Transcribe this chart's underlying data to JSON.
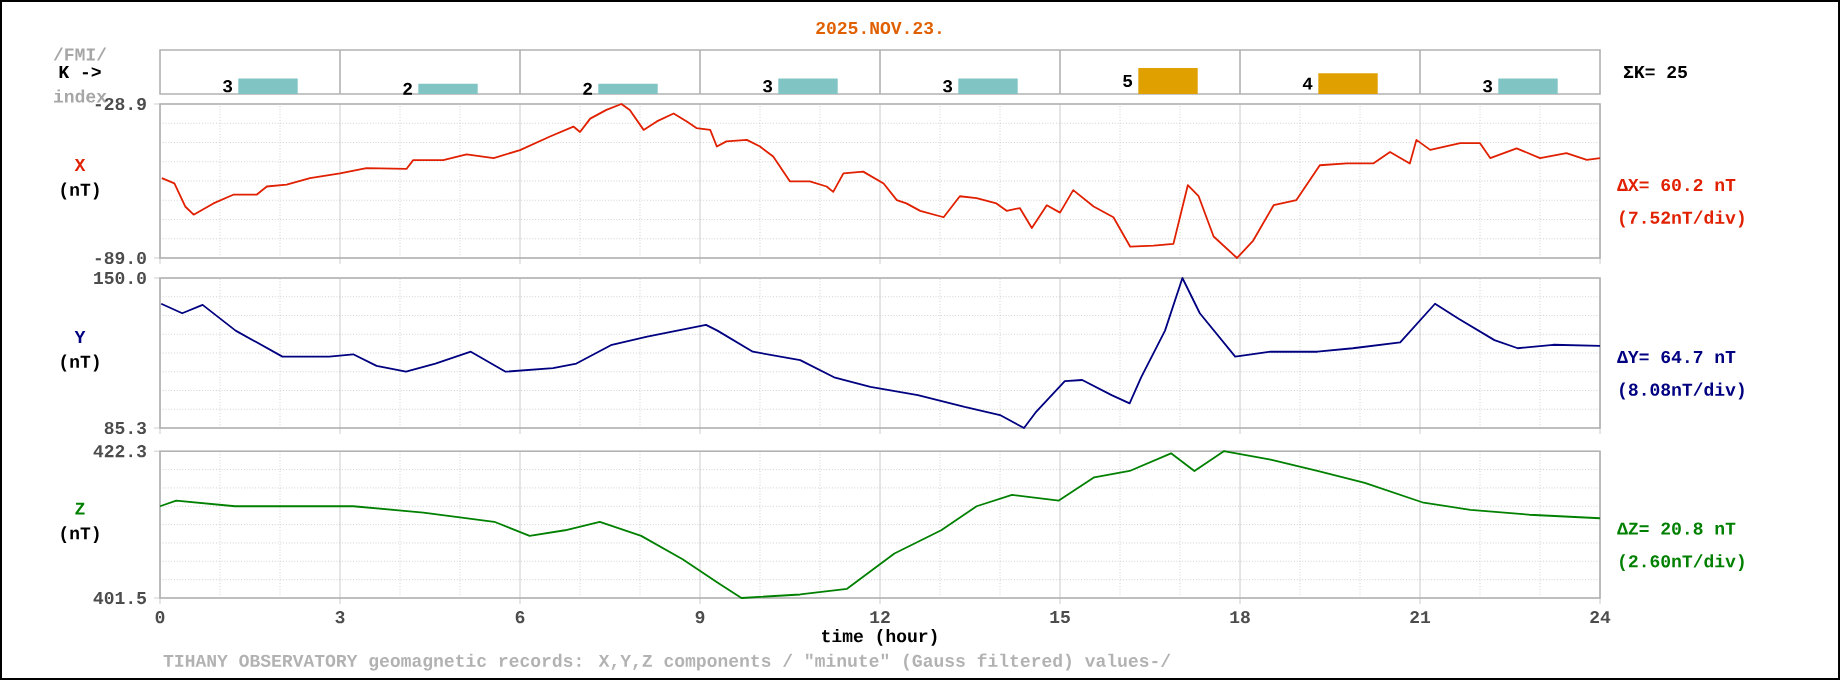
{
  "chart_data": [
    {
      "type": "bar",
      "title": "2025.NOV.23.",
      "ylabel": "K ->",
      "annotations": [
        "/FMI/",
        "index",
        "ΣK= 25"
      ],
      "categories": [
        null,
        null,
        null,
        null,
        null,
        null,
        null,
        null
      ],
      "values": [
        3,
        2,
        2,
        3,
        3,
        5,
        4,
        3
      ],
      "colors": [
        "#80c4c4",
        "#80c4c4",
        "#80c4c4",
        "#80c4c4",
        "#80c4c4",
        "#e0a000",
        "#e0a000",
        "#80c4c4"
      ],
      "data_labels": true
    },
    {
      "type": "line",
      "ylabel": "(nT)",
      "annotations": [
        "ΔX= 60.2 nT",
        "(7.52nT/div)"
      ],
      "xlim": [
        0,
        24
      ],
      "xticks": [
        0,
        3,
        6,
        9,
        12,
        15,
        18,
        21,
        24
      ],
      "ylim": [
        -89.0,
        -28.9
      ],
      "yticks": [
        -28.9,
        {
          "value": -89.0,
          "label": "-89.0"
        }
      ],
      "tick_labels": "y",
      "grid": true,
      "series": [
        {
          "name": "X",
          "color": "#e02000",
          "x": [
            0.03,
            0.24,
            0.42,
            0.56,
            0.89,
            1.22,
            1.61,
            1.78,
            2.11,
            2.5,
            3.0,
            3.44,
            4.11,
            4.22,
            4.72,
            5.11,
            5.56,
            6.0,
            6.5,
            6.89,
            7.0,
            7.17,
            7.44,
            7.69,
            7.83,
            8.06,
            8.28,
            8.56,
            8.78,
            8.94,
            9.17,
            9.28,
            9.44,
            9.78,
            10.0,
            10.22,
            10.5,
            10.83,
            11.11,
            11.22,
            11.39,
            11.72,
            12.06,
            12.28,
            12.44,
            12.67,
            13.06,
            13.33,
            13.61,
            13.94,
            14.11,
            14.33,
            14.53,
            14.78,
            15.0,
            15.22,
            15.56,
            15.89,
            16.17,
            16.56,
            16.89,
            17.13,
            17.31,
            17.56,
            17.95,
            18.22,
            18.56,
            18.94,
            19.33,
            19.78,
            20.22,
            20.5,
            20.83,
            20.94,
            21.17,
            21.67,
            22.0,
            22.17,
            22.61,
            23.0,
            23.44,
            23.78,
            24.0
          ],
          "values": [
            -57.8,
            -59.9,
            -68.9,
            -72.1,
            -67.7,
            -64.3,
            -64.3,
            -61.1,
            -60.4,
            -57.8,
            -56.0,
            -53.9,
            -54.2,
            -50.8,
            -50.8,
            -48.6,
            -50.0,
            -46.9,
            -41.6,
            -37.7,
            -39.8,
            -34.6,
            -31.2,
            -28.9,
            -31.2,
            -39.0,
            -35.7,
            -32.6,
            -35.7,
            -38.3,
            -39.0,
            -45.5,
            -43.5,
            -42.9,
            -45.5,
            -49.4,
            -59.1,
            -59.1,
            -61.1,
            -63.2,
            -56.0,
            -55.3,
            -59.9,
            -66.4,
            -67.7,
            -70.6,
            -73.1,
            -64.9,
            -65.6,
            -67.7,
            -70.6,
            -69.5,
            -77.3,
            -68.4,
            -71.3,
            -62.5,
            -68.9,
            -73.1,
            -84.6,
            -84.2,
            -83.5,
            -60.6,
            -64.9,
            -80.6,
            -89.0,
            -82.2,
            -68.4,
            -66.4,
            -52.8,
            -52.1,
            -52.1,
            -47.6,
            -52.1,
            -42.9,
            -46.8,
            -44.2,
            -44.2,
            -50.0,
            -46.2,
            -50.0,
            -48.1,
            -50.7,
            -50.0
          ]
        }
      ]
    },
    {
      "type": "line",
      "ylabel": "(nT)",
      "annotations": [
        "ΔY= 64.7 nT",
        "(8.08nT/div)"
      ],
      "xlim": [
        0,
        24
      ],
      "xticks": [
        0,
        3,
        6,
        9,
        12,
        15,
        18,
        21,
        24
      ],
      "ylim": [
        85.3,
        150.0
      ],
      "yticks": [
        {
          "value": 150.0,
          "label": "150.0"
        },
        85.3
      ],
      "tick_labels": "y",
      "grid": true,
      "series": [
        {
          "name": "Y",
          "color": "#000080",
          "x": [
            0.02,
            0.37,
            0.71,
            1.26,
            2.04,
            2.82,
            3.22,
            3.61,
            4.1,
            4.59,
            5.18,
            5.76,
            6.55,
            6.94,
            7.53,
            8.12,
            9.1,
            9.29,
            9.88,
            10.67,
            11.25,
            11.84,
            12.63,
            13.41,
            14.0,
            14.4,
            14.59,
            15.08,
            15.37,
            15.86,
            16.16,
            16.35,
            16.75,
            17.04,
            17.33,
            17.92,
            18.51,
            19.29,
            19.88,
            20.67,
            21.25,
            21.65,
            22.24,
            22.63,
            23.22,
            24.0
          ],
          "values": [
            138.9,
            134.8,
            138.4,
            127.3,
            116.1,
            116.1,
            117.1,
            112.1,
            109.6,
            113.1,
            118.2,
            109.6,
            111.1,
            113.1,
            121.2,
            124.7,
            129.8,
            127.3,
            118.2,
            114.6,
            107.0,
            103.0,
            99.5,
            94.4,
            90.9,
            85.3,
            91.9,
            105.5,
            106.0,
            99.5,
            95.9,
            107.0,
            127.3,
            150.0,
            134.8,
            116.1,
            118.2,
            118.2,
            119.7,
            122.2,
            138.9,
            132.3,
            123.2,
            119.7,
            121.2,
            120.7
          ]
        }
      ]
    },
    {
      "type": "line",
      "xlabel": "time (hour)",
      "ylabel": "(nT)",
      "annotations": [
        "ΔZ= 20.8 nT",
        "(2.60nT/div)",
        "TIHANY OBSERVATORY geomagnetic records: X,Y,Z components / \"minute\" (Gauss filtered) values-/"
      ],
      "xlim": [
        0,
        24
      ],
      "xticks": [
        0,
        3,
        6,
        9,
        12,
        15,
        18,
        21,
        24
      ],
      "ylim": [
        401.5,
        422.3
      ],
      "yticks": [
        422.3,
        401.5
      ],
      "grid": true,
      "series": [
        {
          "name": "Z",
          "color": "#008000",
          "x": [
            0,
            0.27,
            1.25,
            3.22,
            4.39,
            5.57,
            6.16,
            6.75,
            7.33,
            8.02,
            8.71,
            9.29,
            9.69,
            10.67,
            11.45,
            12.24,
            13.02,
            13.61,
            14.2,
            14.98,
            15.57,
            16.16,
            16.85,
            17.24,
            17.73,
            18.51,
            19.29,
            20.08,
            21.06,
            21.84,
            22.82,
            24.0
          ],
          "values": [
            414.5,
            415.3,
            414.5,
            414.5,
            413.6,
            412.3,
            410.3,
            411.1,
            412.3,
            410.3,
            407.0,
            403.7,
            401.5,
            402.0,
            402.8,
            407.8,
            411.1,
            414.5,
            416.1,
            415.3,
            418.6,
            419.5,
            422.0,
            419.5,
            422.3,
            421.1,
            419.5,
            417.8,
            415.0,
            414.0,
            413.3,
            412.8
          ]
        }
      ]
    }
  ]
}
